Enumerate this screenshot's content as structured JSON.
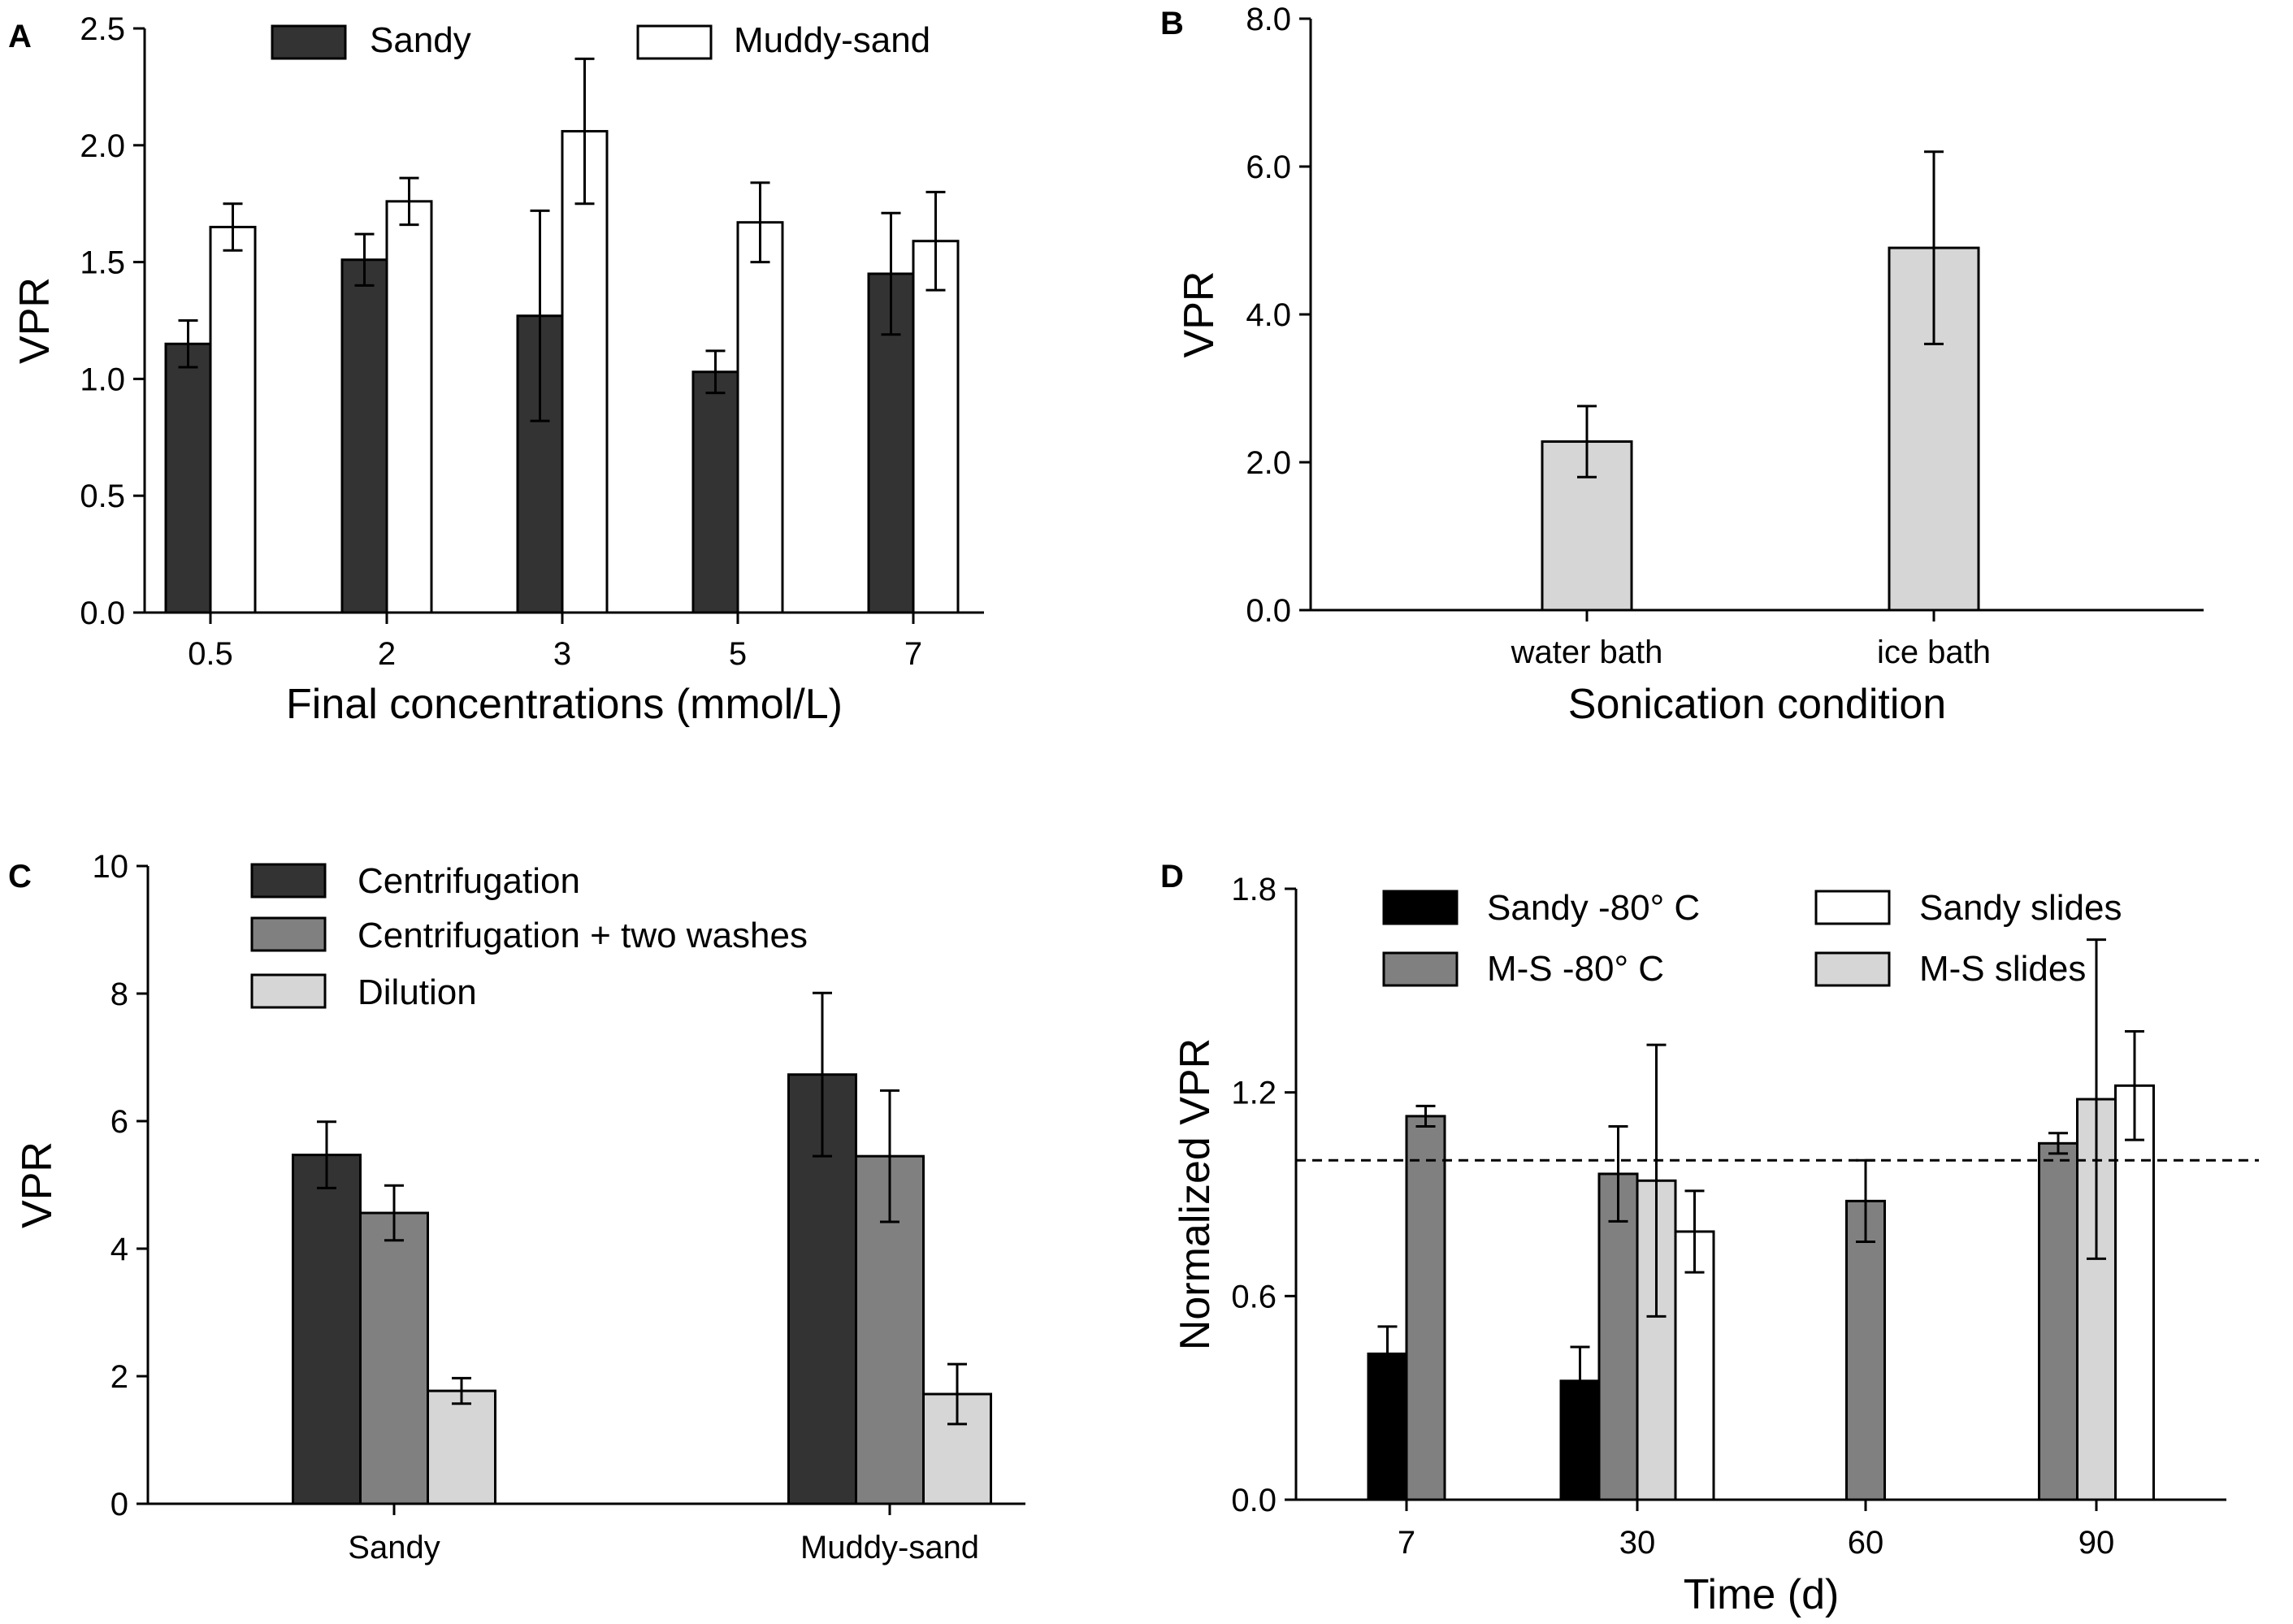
{
  "figure": {
    "panels": [
      "A",
      "B",
      "C",
      "D"
    ]
  },
  "chart_data": [
    {
      "panel": "A",
      "type": "bar",
      "title": "",
      "xlabel": "Final concentrations (mmol/L)",
      "ylabel": "VPR",
      "categories": [
        "0.5",
        "2",
        "3",
        "5",
        "7"
      ],
      "ylim": [
        0,
        2.5
      ],
      "yticks": [
        "0.0",
        "0.5",
        "1.0",
        "1.5",
        "2.0",
        "2.5"
      ],
      "legend_position": "top",
      "series": [
        {
          "name": "Sandy",
          "color": "#333333",
          "values": [
            1.15,
            1.51,
            1.27,
            1.03,
            1.45
          ],
          "errors": [
            0.1,
            0.11,
            0.45,
            0.09,
            0.26
          ]
        },
        {
          "name": "Muddy-sand",
          "color": "#ffffff",
          "values": [
            1.65,
            1.76,
            2.06,
            1.67,
            1.59
          ],
          "errors": [
            0.1,
            0.1,
            0.31,
            0.17,
            0.21
          ]
        }
      ]
    },
    {
      "panel": "B",
      "type": "bar",
      "title": "",
      "xlabel": "Sonication condition",
      "ylabel": "VPR",
      "categories": [
        "water bath",
        "ice bath"
      ],
      "ylim": [
        0,
        8.0
      ],
      "yticks": [
        "0.0",
        "2.0",
        "4.0",
        "6.0",
        "8.0"
      ],
      "series": [
        {
          "name": "",
          "color": "#d6d6d6",
          "values": [
            2.28,
            4.9
          ],
          "errors": [
            0.48,
            1.3
          ]
        }
      ]
    },
    {
      "panel": "C",
      "type": "bar",
      "title": "",
      "xlabel": "",
      "ylabel": "VPR",
      "categories": [
        "Sandy",
        "Muddy-sand"
      ],
      "ylim": [
        0,
        10
      ],
      "yticks": [
        "0",
        "2",
        "4",
        "6",
        "8",
        "10"
      ],
      "legend_position": "top-left",
      "series": [
        {
          "name": "Centrifugation",
          "color": "#333333",
          "values": [
            5.47,
            6.73
          ],
          "errors": [
            0.52,
            1.28
          ]
        },
        {
          "name": "Centrifugation + two washes",
          "color": "#808080",
          "values": [
            4.56,
            5.45
          ],
          "errors": [
            0.43,
            1.03
          ]
        },
        {
          "name": "Dilution",
          "color": "#d6d6d6",
          "values": [
            1.77,
            1.72
          ],
          "errors": [
            0.2,
            0.47
          ]
        }
      ]
    },
    {
      "panel": "D",
      "type": "bar",
      "title": "",
      "xlabel": "Time (d)",
      "ylabel": "Normalized VPR",
      "categories": [
        "7",
        "30",
        "60",
        "90"
      ],
      "ylim": [
        0,
        1.8
      ],
      "yticks": [
        "0.0",
        "0.6",
        "1.2",
        "1.8"
      ],
      "reference_line": 1.0,
      "legend_position": "top",
      "series": [
        {
          "name": "Sandy -80° C",
          "color": "#000000",
          "values": [
            0.43,
            0.35,
            null,
            null
          ],
          "errors": [
            0.08,
            0.1,
            null,
            null
          ]
        },
        {
          "name": "M-S -80° C",
          "color": "#808080",
          "values": [
            1.13,
            0.96,
            0.88,
            1.05
          ],
          "errors": [
            0.03,
            0.14,
            0.12,
            0.03
          ]
        },
        {
          "name": "M-S slides",
          "color": "#d6d6d6",
          "values": [
            null,
            0.94,
            null,
            1.18
          ],
          "errors": [
            null,
            0.4,
            null,
            0.47
          ]
        },
        {
          "name": "Sandy slides",
          "color": "#ffffff",
          "values": [
            null,
            0.79,
            null,
            1.22
          ],
          "errors": [
            null,
            0.12,
            null,
            0.16
          ]
        }
      ]
    }
  ]
}
